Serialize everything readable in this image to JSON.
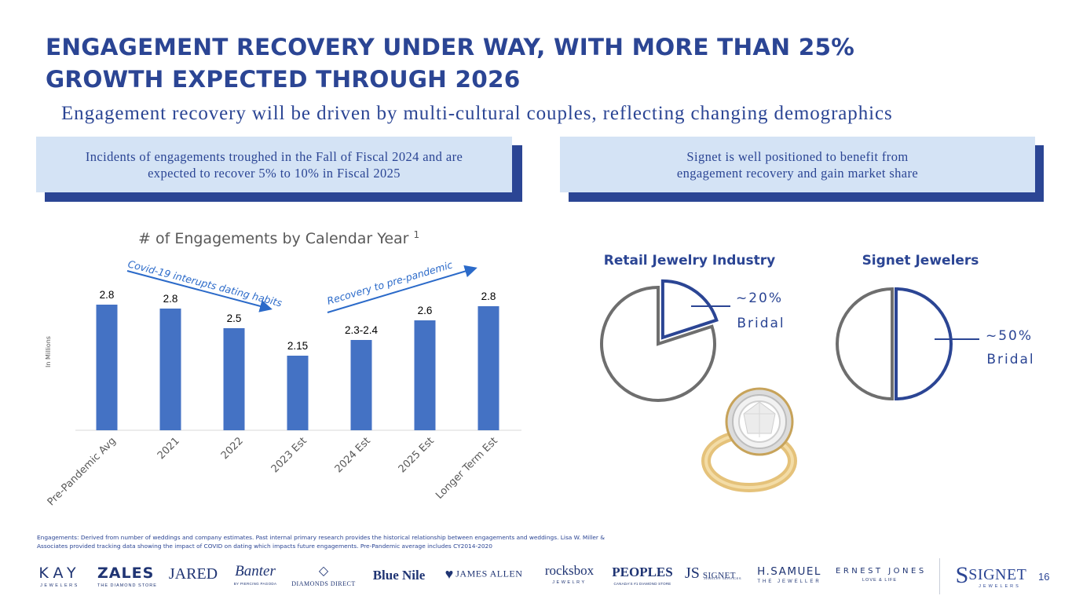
{
  "title": {
    "line1": "ENGAGEMENT RECOVERY UNDER WAY, WITH MORE THAN 25%",
    "line2": "GROWTH EXPECTED THROUGH 2026"
  },
  "subtitle": "Engagement recovery will be driven by multi-cultural couples, reflecting changing demographics",
  "callout_left": {
    "line1": "Incidents of engagements troughed in the Fall of Fiscal 2024 and are",
    "line2": "expected to recover 5% to 10% in Fiscal 2025"
  },
  "callout_right": {
    "line1": "Signet is well positioned to benefit from",
    "line2": "engagement recovery and gain market share"
  },
  "chart_data": [
    {
      "type": "bar",
      "title": "# of Engagements by Calendar Year",
      "title_superscript": "1",
      "ylabel": "In Millions",
      "xlabel": "",
      "categories": [
        "Pre-Pandemic Avg",
        "2021",
        "2022",
        "2023 Est",
        "2024 Est",
        "2025 Est",
        "Longer Term Est"
      ],
      "values": [
        2.8,
        2.75,
        2.5,
        2.15,
        2.35,
        2.6,
        2.78
      ],
      "data_labels": [
        "2.8",
        "2.8",
        "2.5",
        "2.15",
        "2.3-2.4",
        "2.6",
        "2.8"
      ],
      "ylim": [
        1.2,
        3.0
      ],
      "color": "#4472c4",
      "annotations": [
        {
          "text": "Covid-19 interupts dating habits",
          "direction": "down"
        },
        {
          "text": "Recovery to pre-pandemic",
          "direction": "up"
        }
      ]
    },
    {
      "type": "pie",
      "title": "Retail Jewelry Industry",
      "slices": [
        {
          "label": "Bridal",
          "value": 20,
          "display": "~20%",
          "highlight": true
        },
        {
          "label": "Other",
          "value": 80,
          "display": "",
          "highlight": false
        }
      ]
    },
    {
      "type": "pie",
      "title": "Signet Jewelers",
      "slices": [
        {
          "label": "Bridal",
          "value": 50,
          "display": "~50%",
          "highlight": true
        },
        {
          "label": "Other",
          "value": 50,
          "display": "",
          "highlight": false
        }
      ]
    }
  ],
  "colors": {
    "navy": "#2b4594",
    "bar": "#4472c4",
    "pie_gray": "#6e6e6e",
    "callout_bg": "#d4e3f5"
  },
  "footnote": {
    "line1": "Engagements: Derived from number of weddings and company estimates. Past internal primary research provides the historical relationship between engagements and weddings. Lisa W. Miller &",
    "line2": "Associates provided tracking data showing the impact of COVID on dating which impacts future engagements. Pre-Pandemic average includes CY2014-2020"
  },
  "logos": {
    "kay": "KAY",
    "kay_sub": "JEWELERS",
    "zales": "ZALES",
    "zales_sub": "THE DIAMOND STORE",
    "jared": "JARED",
    "banter": "Banter",
    "banter_sub": "BY PIERCING PAGODA",
    "diamonds_direct": "DIAMONDS DIRECT",
    "blue_nile": "Blue Nile",
    "james_allen": "JAMES ALLEN",
    "rocksbox": "rocksbox",
    "rocksbox_sub": "JEWELRY",
    "peoples": "PEOPLES",
    "peoples_sub": "CANADA'S #1 DIAMOND STORE",
    "js": "JS",
    "js_signet": "SIGNET",
    "js_sub": "JEWELRY SERVICES",
    "hsamuel": "H.SAMUEL",
    "hsamuel_sub": "THE JEWELLER",
    "ernest_jones": "ERNEST JONES",
    "ernest_sub": "LOVE & LIFE",
    "signet": "SIGNET",
    "signet_s": "S",
    "signet_sub": "JEWELERS"
  },
  "page_number": "16"
}
